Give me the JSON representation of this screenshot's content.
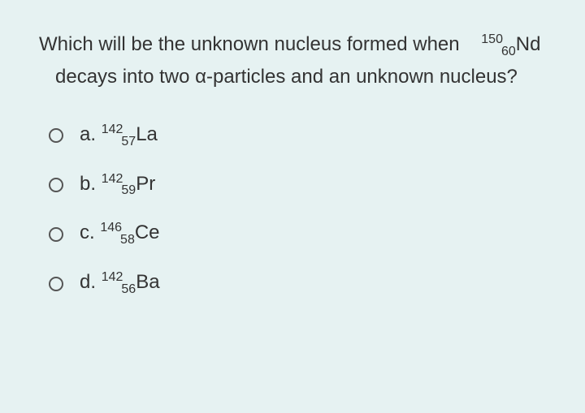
{
  "question": {
    "prefix": "Which will be the unknown nucleus formed when",
    "nuclide_mass": "150",
    "nuclide_atomic": "60",
    "nuclide_symbol": "Nd",
    "middle": "decays into two α-particles and an unknown nucleus?",
    "color": "#333333",
    "fontsize": 24
  },
  "options": [
    {
      "letter": "a.",
      "mass": "142",
      "atomic": "57",
      "symbol": "La"
    },
    {
      "letter": "b.",
      "mass": "142",
      "atomic": "59",
      "symbol": "Pr"
    },
    {
      "letter": "c.",
      "mass": "146",
      "atomic": "58",
      "symbol": "Ce"
    },
    {
      "letter": "d.",
      "mass": "142",
      "atomic": "56",
      "symbol": "Ba"
    }
  ],
  "style": {
    "background": "#e6f2f2",
    "radio_border": "#555555",
    "text_color": "#333333"
  }
}
